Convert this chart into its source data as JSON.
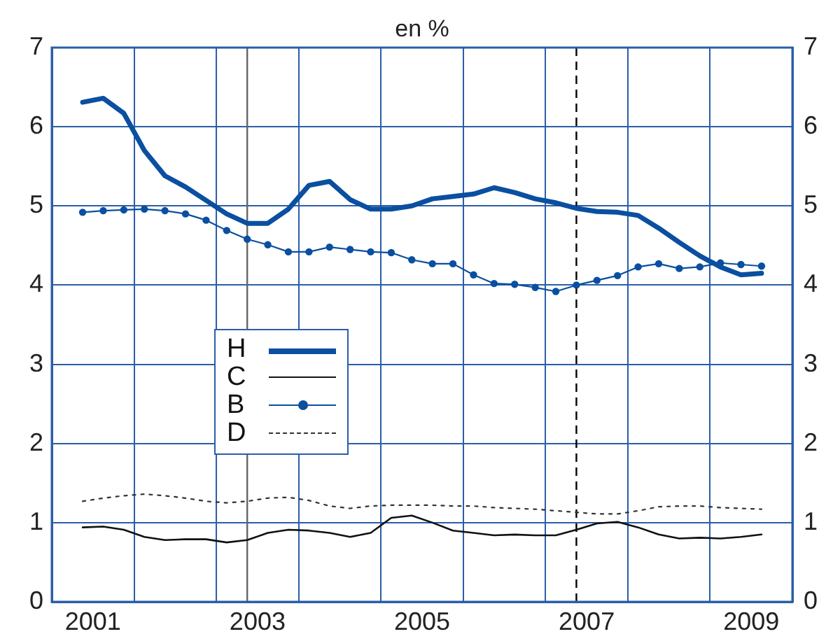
{
  "chart_data": {
    "type": "line",
    "title": "en %",
    "x": [
      2000.875,
      2001.125,
      2001.375,
      2001.625,
      2001.875,
      2002.125,
      2002.375,
      2002.625,
      2002.875,
      2003.125,
      2003.375,
      2003.625,
      2003.875,
      2004.125,
      2004.375,
      2004.625,
      2004.875,
      2005.125,
      2005.375,
      2005.625,
      2005.875,
      2006.125,
      2006.375,
      2006.625,
      2006.875,
      2007.125,
      2007.375,
      2007.625,
      2007.875,
      2008.125,
      2008.375,
      2008.625,
      2008.875,
      2009.125
    ],
    "series": [
      {
        "name": "H",
        "color": "#0a4fa0",
        "marker": "none",
        "line_style": "solid",
        "values": [
          6.31,
          6.36,
          6.17,
          5.7,
          5.38,
          5.24,
          5.07,
          4.9,
          4.78,
          4.78,
          4.96,
          5.26,
          5.31,
          5.08,
          4.96,
          4.96,
          5.0,
          5.09,
          5.12,
          5.15,
          5.23,
          5.17,
          5.09,
          5.04,
          4.97,
          4.93,
          4.92,
          4.88,
          4.72,
          4.54,
          4.37,
          4.23,
          4.13,
          4.15
        ]
      },
      {
        "name": "C",
        "color": "#111111",
        "marker": "none",
        "line_style": "solid",
        "values": [
          0.94,
          0.95,
          0.91,
          0.82,
          0.78,
          0.79,
          0.79,
          0.75,
          0.78,
          0.87,
          0.91,
          0.9,
          0.87,
          0.82,
          0.87,
          1.06,
          1.09,
          1.0,
          0.9,
          0.87,
          0.84,
          0.85,
          0.84,
          0.84,
          0.91,
          0.99,
          1.01,
          0.94,
          0.85,
          0.8,
          0.81,
          0.8,
          0.82,
          0.85
        ]
      },
      {
        "name": "B",
        "color": "#0a4fa0",
        "marker": "circle",
        "line_style": "solid",
        "values": [
          4.92,
          4.94,
          4.95,
          4.96,
          4.94,
          4.9,
          4.82,
          4.69,
          4.58,
          4.51,
          4.42,
          4.42,
          4.48,
          4.45,
          4.42,
          4.41,
          4.32,
          4.27,
          4.27,
          4.13,
          4.02,
          4.01,
          3.97,
          3.92,
          4.0,
          4.06,
          4.12,
          4.23,
          4.27,
          4.21,
          4.23,
          4.28,
          4.26,
          4.24
        ]
      },
      {
        "name": "D",
        "color": "#333333",
        "marker": "none",
        "line_style": "dotted",
        "values": [
          1.27,
          1.31,
          1.34,
          1.36,
          1.34,
          1.31,
          1.27,
          1.25,
          1.27,
          1.31,
          1.32,
          1.28,
          1.21,
          1.18,
          1.21,
          1.22,
          1.22,
          1.22,
          1.21,
          1.21,
          1.19,
          1.18,
          1.17,
          1.15,
          1.13,
          1.11,
          1.11,
          1.15,
          1.2,
          1.21,
          1.21,
          1.19,
          1.18,
          1.17
        ]
      }
    ],
    "xlim": [
      2000.5,
      2009.5
    ],
    "xticks": [
      2001,
      {
        "value": 2001.5,
        "label": null
      },
      {
        "value": 2002.5,
        "label": null
      },
      2003,
      {
        "value": 2003.5,
        "label": null
      },
      {
        "value": 2004.5,
        "label": null
      },
      2005,
      {
        "value": 2005.5,
        "label": null
      },
      {
        "value": 2006.5,
        "label": null
      },
      2007,
      {
        "value": 2007.5,
        "label": null
      },
      {
        "value": 2008.5,
        "label": null
      },
      2009
    ],
    "ylim": [
      0,
      7
    ],
    "yticks": [
      0,
      1,
      2,
      3,
      4,
      5,
      6,
      7
    ],
    "y2lim": [
      0,
      7
    ],
    "y2ticks": [
      0,
      1,
      2,
      3,
      4,
      5,
      6,
      7
    ],
    "ref_lines": [
      {
        "axis": "x",
        "value": 2002.875,
        "color": "#666666",
        "line_style": "solid"
      },
      {
        "axis": "x",
        "value": 2006.875,
        "color": "#000000",
        "line_style": "dashed"
      }
    ],
    "grid": true,
    "legend": "left"
  }
}
